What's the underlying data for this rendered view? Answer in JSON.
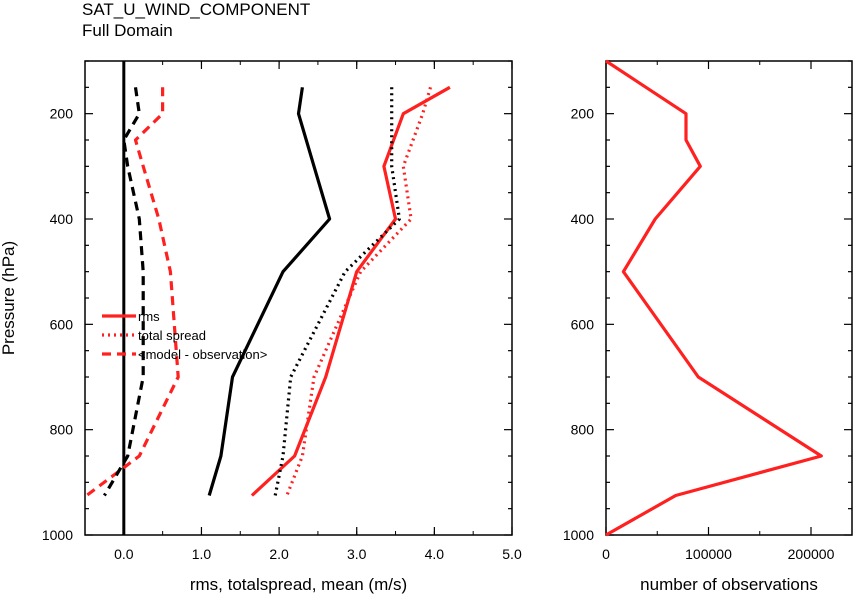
{
  "title": "SAT_U_WIND_COMPONENT",
  "subtitle": "Full Domain",
  "chart_data": [
    {
      "type": "line",
      "xlabel": "rms, totalspread, mean (m/s)",
      "ylabel": "Pressure (hPa)",
      "xlim": [
        -0.5,
        5.0
      ],
      "ylim": [
        1000,
        100
      ],
      "x_ticks": [
        "0.0",
        "1.0",
        "2.0",
        "3.0",
        "4.0",
        "5.0"
      ],
      "y_ticks": [
        "200",
        "400",
        "600",
        "800",
        "1000"
      ],
      "legend_position": "left-middle",
      "series": [
        {
          "name": "rms",
          "group": "exp",
          "color": "#ff2020",
          "dash": "solid",
          "points": [
            [
              4.2,
              150
            ],
            [
              3.6,
              200
            ],
            [
              3.35,
              300
            ],
            [
              3.5,
              400
            ],
            [
              3.0,
              500
            ],
            [
              2.6,
              700
            ],
            [
              2.2,
              850
            ],
            [
              1.65,
              925
            ]
          ]
        },
        {
          "name": "total spread",
          "group": "exp",
          "color": "#ff2020",
          "dash": "dot",
          "points": [
            [
              3.95,
              150
            ],
            [
              3.85,
              200
            ],
            [
              3.6,
              300
            ],
            [
              3.7,
              400
            ],
            [
              3.05,
              500
            ],
            [
              2.45,
              700
            ],
            [
              2.3,
              850
            ],
            [
              2.1,
              925
            ]
          ]
        },
        {
          "name": "<model - observation>",
          "group": "exp",
          "color": "#ff2020",
          "dash": "dash",
          "points": [
            [
              0.5,
              150
            ],
            [
              0.5,
              200
            ],
            [
              0.15,
              250
            ],
            [
              0.25,
              300
            ],
            [
              0.45,
              400
            ],
            [
              0.6,
              500
            ],
            [
              0.7,
              700
            ],
            [
              0.2,
              850
            ],
            [
              -0.48,
              925
            ]
          ]
        },
        {
          "group": "ctl",
          "color": "#000000",
          "dash": "solid",
          "points": [
            [
              2.3,
              150
            ],
            [
              2.25,
              200
            ],
            [
              2.45,
              300
            ],
            [
              2.65,
              400
            ],
            [
              2.05,
              500
            ],
            [
              1.4,
              700
            ],
            [
              1.25,
              850
            ],
            [
              1.1,
              925
            ]
          ]
        },
        {
          "group": "ctl",
          "color": "#000000",
          "dash": "dot",
          "points": [
            [
              3.45,
              150
            ],
            [
              3.45,
              200
            ],
            [
              3.45,
              300
            ],
            [
              3.55,
              400
            ],
            [
              2.85,
              500
            ],
            [
              2.15,
              700
            ],
            [
              2.05,
              850
            ],
            [
              1.95,
              925
            ]
          ]
        },
        {
          "group": "ctl",
          "color": "#000000",
          "dash": "dash",
          "points": [
            [
              0.15,
              150
            ],
            [
              0.2,
              200
            ],
            [
              0.0,
              250
            ],
            [
              0.05,
              300
            ],
            [
              0.2,
              400
            ],
            [
              0.25,
              500
            ],
            [
              0.25,
              700
            ],
            [
              0.05,
              850
            ],
            [
              -0.25,
              925
            ]
          ]
        }
      ],
      "zero_line_x": 0.0
    },
    {
      "type": "line",
      "xlabel": "number of observations",
      "ylabel": "",
      "xlim": [
        0,
        240000
      ],
      "ylim": [
        1000,
        100
      ],
      "x_ticks": [
        "0",
        "100000",
        "200000"
      ],
      "y_ticks": [
        "200",
        "400",
        "600",
        "800",
        "1000"
      ],
      "series": [
        {
          "color": "#ff2020",
          "dash": "solid",
          "points": [
            [
              0,
              100
            ],
            [
              78000,
              200
            ],
            [
              78000,
              250
            ],
            [
              92000,
              300
            ],
            [
              48000,
              400
            ],
            [
              17000,
              500
            ],
            [
              90000,
              700
            ],
            [
              210000,
              850
            ],
            [
              68000,
              925
            ],
            [
              0,
              1000
            ]
          ]
        }
      ]
    }
  ]
}
